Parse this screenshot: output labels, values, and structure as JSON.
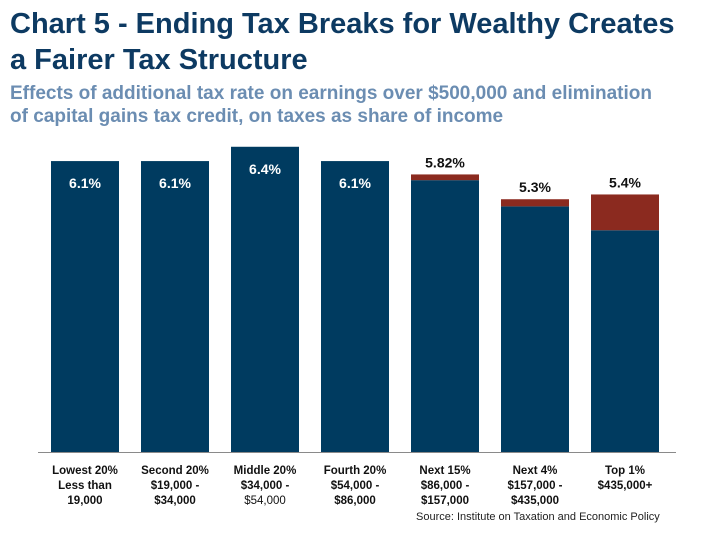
{
  "title_line1": "Chart 5 - Ending Tax Breaks for Wealthy Creates",
  "title_line2": "a Fairer Tax Structure",
  "subtitle_line1": "Effects of additional tax rate on earnings over $500,000 and elimination",
  "subtitle_line2": "of capital gains tax credit, on taxes as share of income",
  "source": "Source: Institute on Taxation and Economic Policy",
  "colors": {
    "base": "#003b60",
    "increase": "#8b2a1f",
    "title": "#0d3a62",
    "subtitle": "#6b8db2"
  },
  "chart_data": {
    "type": "bar",
    "stacked": true,
    "ylim": [
      0,
      6.5
    ],
    "grid": false,
    "legend": "none",
    "categories": [
      [
        "Lowest 20%",
        "Less than",
        "19,000"
      ],
      [
        "Second 20%",
        "$19,000 -",
        "$34,000"
      ],
      [
        "Middle 20%",
        "$34,000 -",
        "$54,000"
      ],
      [
        "Fourth 20%",
        "$54,000 -",
        "$86,000"
      ],
      [
        "Next 15%",
        "$86,000 -",
        "$157,000"
      ],
      [
        "Next 4%",
        "$157,000 -",
        "$435,000"
      ],
      [
        "Top 1%",
        "$435,000+"
      ]
    ],
    "series": [
      {
        "values": [
          6.1,
          6.1,
          6.4,
          6.1,
          5.7,
          5.15,
          4.65
        ]
      },
      {
        "values": [
          0,
          0,
          0,
          0,
          0.12,
          0.15,
          0.75
        ]
      }
    ],
    "labels": [
      "6.1%",
      "6.1%",
      "6.4%",
      "6.1%",
      "5.82%",
      "5.3%",
      "5.4%"
    ]
  }
}
